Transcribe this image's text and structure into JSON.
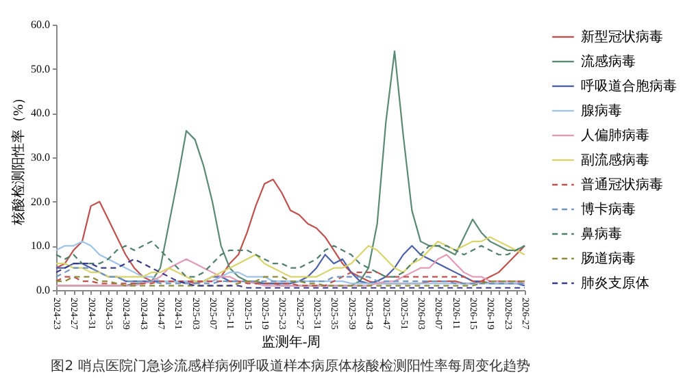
{
  "chart_data": {
    "type": "line",
    "title": "图2 哨点医院门急诊流感样病例呼吸道样本病原体核酸检测阳性率每周变化趋势",
    "xlabel": "监测年-周",
    "ylabel": "核酸检测阳性率（%）",
    "legend": "right",
    "ylim": [
      0,
      60
    ],
    "yticks": [
      {
        "value": 0,
        "label": "0.0"
      },
      {
        "value": 10,
        "label": "10.0"
      },
      {
        "value": 20,
        "label": "20.0"
      },
      {
        "value": 30,
        "label": "30.0"
      },
      {
        "value": 40,
        "label": "40.0"
      },
      {
        "value": 50,
        "label": "50.0"
      },
      {
        "value": 60,
        "label": "60.0"
      }
    ],
    "categories": [
      "2024-23",
      null,
      "2024-27",
      null,
      "2024-31",
      null,
      "2024-35",
      null,
      "2024-39",
      null,
      "2024-43",
      null,
      "2024-47",
      null,
      "2024-51",
      null,
      "2025-03",
      null,
      "2025-07",
      null,
      "2025-11",
      null,
      "2025-15",
      null,
      "2025-19",
      null,
      "2025-23",
      null,
      "2025-27",
      null,
      "2025-31",
      null,
      "2025-35",
      null,
      "2025-39",
      null,
      "2025-43",
      null,
      "2025-47",
      null,
      "2025-51",
      null,
      "2026-03",
      null,
      "2026-07",
      null,
      "2026-11",
      null,
      "2026-15",
      null,
      "2026-19",
      null,
      "2026-23",
      null,
      "2026-27"
    ],
    "series": [
      {
        "name": "新型冠状病毒",
        "color": "#c0504d",
        "line_style": "solid",
        "values": [
          5,
          6,
          9,
          11,
          19,
          20,
          16,
          12,
          8,
          5,
          3,
          2,
          2,
          2,
          2,
          2,
          1.5,
          2,
          2,
          3,
          6,
          8,
          13,
          19,
          24,
          25,
          22,
          18,
          17,
          15,
          14,
          12,
          9,
          6,
          4,
          3,
          2,
          1.5,
          1.5,
          1.5,
          1.5,
          1.5,
          1.5,
          2,
          2,
          2,
          2,
          1.5,
          1.5,
          2,
          3,
          4,
          6,
          8,
          10
        ]
      },
      {
        "name": "流感病毒",
        "color": "#5a8a72",
        "line_style": "solid",
        "values": [
          1,
          1,
          1,
          1,
          1,
          1,
          1,
          1,
          1,
          1.5,
          1.5,
          2,
          5,
          15,
          25,
          36,
          34,
          28,
          20,
          10,
          5,
          3,
          2,
          2,
          1.5,
          1.5,
          1,
          1,
          1,
          1,
          1,
          1,
          1,
          1,
          1,
          2,
          5,
          15,
          38,
          54,
          35,
          18,
          11,
          10,
          10,
          9,
          8,
          12,
          16,
          13,
          11,
          10,
          9,
          9,
          10
        ]
      },
      {
        "name": "呼吸道合胞病毒",
        "color": "#4a5fa8",
        "line_style": "solid",
        "values": [
          5,
          5,
          6,
          6,
          5,
          4,
          3,
          3,
          2,
          2,
          2,
          2,
          2,
          2,
          2,
          2,
          2,
          2,
          3,
          3,
          2,
          2,
          2,
          1.5,
          1.5,
          1.5,
          1.5,
          1.5,
          2,
          3,
          5,
          8,
          6,
          7,
          4,
          2,
          1.5,
          2,
          3,
          5,
          8,
          10,
          8,
          7,
          6,
          5,
          4,
          3,
          2,
          2,
          1.5,
          1.5,
          1.5,
          1.5,
          1
        ]
      },
      {
        "name": "腺病毒",
        "color": "#9dc3e6",
        "line_style": "solid",
        "values": [
          9,
          10,
          10,
          11,
          10,
          8,
          7,
          6,
          5,
          4,
          3,
          3,
          2,
          2,
          2,
          2,
          2,
          2,
          2,
          3,
          4,
          4,
          3,
          3,
          3,
          2,
          2,
          2,
          2,
          2,
          2,
          2,
          2,
          2,
          1.5,
          1.5,
          1.5,
          1.5,
          1.5,
          1.5,
          1.5,
          1.5,
          1.5,
          1.5,
          1.5,
          1.5,
          1.5,
          1.5,
          1.5,
          1.5,
          1.5,
          1.5,
          1.5,
          1.5,
          1.5
        ]
      },
      {
        "name": "人偏肺病毒",
        "color": "#e39ab5",
        "line_style": "solid",
        "values": [
          1,
          1,
          1,
          1,
          1,
          1,
          1,
          1,
          1,
          1,
          1.5,
          2,
          3,
          5,
          6,
          7,
          6,
          5,
          4,
          3,
          3,
          2,
          2,
          1.5,
          1,
          1,
          1,
          1,
          1,
          1,
          1,
          1,
          1,
          1,
          1,
          1,
          1,
          1.5,
          2,
          2,
          3,
          4,
          5,
          5,
          7,
          8,
          6,
          4,
          3,
          3,
          2,
          2,
          2,
          2,
          1.5
        ]
      },
      {
        "name": "副流感病毒",
        "color": "#d9d46a",
        "line_style": "solid",
        "values": [
          6,
          6,
          5,
          5,
          4,
          4,
          3,
          3,
          3,
          3,
          3,
          4,
          4,
          5,
          4,
          3,
          2,
          2,
          3,
          4,
          5,
          6,
          7,
          8,
          6,
          5,
          4,
          3,
          3,
          3,
          3,
          4,
          5,
          5,
          6,
          8,
          10,
          9,
          7,
          5,
          4,
          6,
          7,
          9,
          11,
          10,
          9,
          10,
          11,
          11,
          12,
          11,
          10,
          9,
          8
        ]
      },
      {
        "name": "普通冠状病毒",
        "color": "#c0504d",
        "line_style": "dashed",
        "values": [
          2,
          3,
          3,
          2,
          2,
          1.5,
          1.5,
          1.5,
          1.5,
          1.5,
          1.5,
          1.5,
          2,
          2,
          2,
          2,
          2,
          2,
          2,
          2,
          2,
          2,
          1.5,
          1.5,
          1.5,
          1.5,
          1.5,
          1.5,
          1,
          1,
          1,
          1,
          2,
          3,
          4,
          4,
          4,
          4,
          3,
          3,
          3,
          3,
          3,
          3,
          3,
          3,
          3,
          3,
          2,
          2,
          2,
          2,
          2,
          2,
          2
        ]
      },
      {
        "name": "博卡病毒",
        "color": "#6f94c0",
        "line_style": "dashed",
        "values": [
          3,
          4,
          5,
          5,
          5,
          4,
          3,
          3,
          2,
          2,
          2,
          2,
          1.5,
          1.5,
          1.5,
          1.5,
          1.5,
          1.5,
          1.5,
          2,
          2,
          2,
          2,
          2,
          2,
          2,
          2,
          2,
          2,
          2,
          2,
          2,
          3,
          3,
          3,
          3,
          3,
          2,
          2,
          2,
          2,
          2,
          2,
          2,
          2,
          2,
          1.5,
          1.5,
          1.5,
          1.5,
          1.5,
          1.5,
          1.5,
          1.5,
          1.5
        ]
      },
      {
        "name": "鼻病毒",
        "color": "#4f7f6a",
        "line_style": "dashed",
        "values": [
          8,
          7,
          8,
          6,
          6,
          6,
          7,
          9,
          10,
          9,
          10,
          11,
          9,
          7,
          5,
          3,
          3,
          4,
          6,
          8,
          9,
          9,
          9,
          8,
          7,
          6,
          6,
          5,
          5,
          6,
          7,
          9,
          10,
          9,
          8,
          6,
          5,
          4,
          3,
          3,
          4,
          6,
          8,
          10,
          10,
          10,
          9,
          8,
          9,
          10,
          9,
          8,
          8,
          9,
          10
        ]
      },
      {
        "name": "肠道病毒",
        "color": "#8a8a3a",
        "line_style": "dashed",
        "values": [
          2,
          2,
          3,
          3,
          3,
          2,
          2,
          1.5,
          1,
          1,
          1,
          1,
          1,
          1,
          1,
          1,
          1,
          1,
          1,
          1,
          1,
          1.5,
          2,
          2,
          3,
          3,
          3,
          2,
          2,
          1.5,
          1.5,
          1,
          1,
          1,
          1,
          1,
          1,
          1,
          1,
          1,
          1,
          1,
          1,
          1,
          1,
          1,
          1,
          1,
          1,
          1.5,
          2,
          2,
          2,
          2,
          2
        ]
      },
      {
        "name": "肺炎支原体",
        "color": "#3a3a8a",
        "line_style": "dashed",
        "values": [
          4,
          5,
          6,
          6,
          6,
          5,
          5,
          5,
          6,
          7,
          6,
          5,
          4,
          3,
          2,
          1.5,
          1,
          1,
          1,
          1,
          1,
          1,
          0.5,
          0.5,
          0.5,
          0.5,
          0.5,
          0.5,
          0.5,
          0.5,
          0.5,
          0.5,
          0.5,
          0.5,
          0.5,
          0.5,
          0.5,
          0.5,
          0.5,
          0.5,
          0.5,
          0.5,
          0.5,
          0.5,
          0.5,
          0.5,
          0.5,
          0.5,
          0.5,
          0.5,
          0.5,
          0.5,
          0.5,
          0.5,
          0.5
        ]
      }
    ]
  }
}
